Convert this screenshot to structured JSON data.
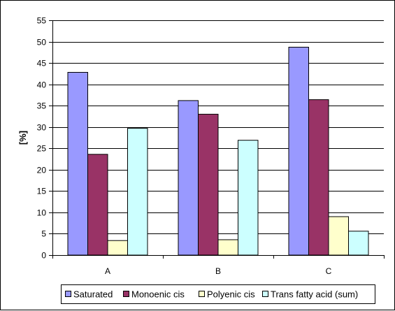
{
  "chart_data": {
    "type": "bar",
    "categories": [
      "A",
      "B",
      "C"
    ],
    "series": [
      {
        "name": "Saturated",
        "values": [
          42.8,
          36.2,
          48.7
        ],
        "color": "#9999ff"
      },
      {
        "name": "Monoenic cis",
        "values": [
          23.6,
          33.0,
          36.4
        ],
        "color": "#993366"
      },
      {
        "name": "Polyenic cis",
        "values": [
          3.4,
          3.6,
          9.0
        ],
        "color": "#ffffcc"
      },
      {
        "name": "Trans fatty acid (sum)",
        "values": [
          29.7,
          26.9,
          5.6
        ],
        "color": "#ccffff"
      }
    ],
    "ylabel": "[%]",
    "xlabel": "",
    "ylim": [
      0,
      55
    ],
    "yticks": [
      "0",
      "5",
      "10",
      "15",
      "20",
      "25",
      "30",
      "35",
      "40",
      "45",
      "50",
      "55"
    ],
    "grid": true,
    "legend": "bottom"
  }
}
